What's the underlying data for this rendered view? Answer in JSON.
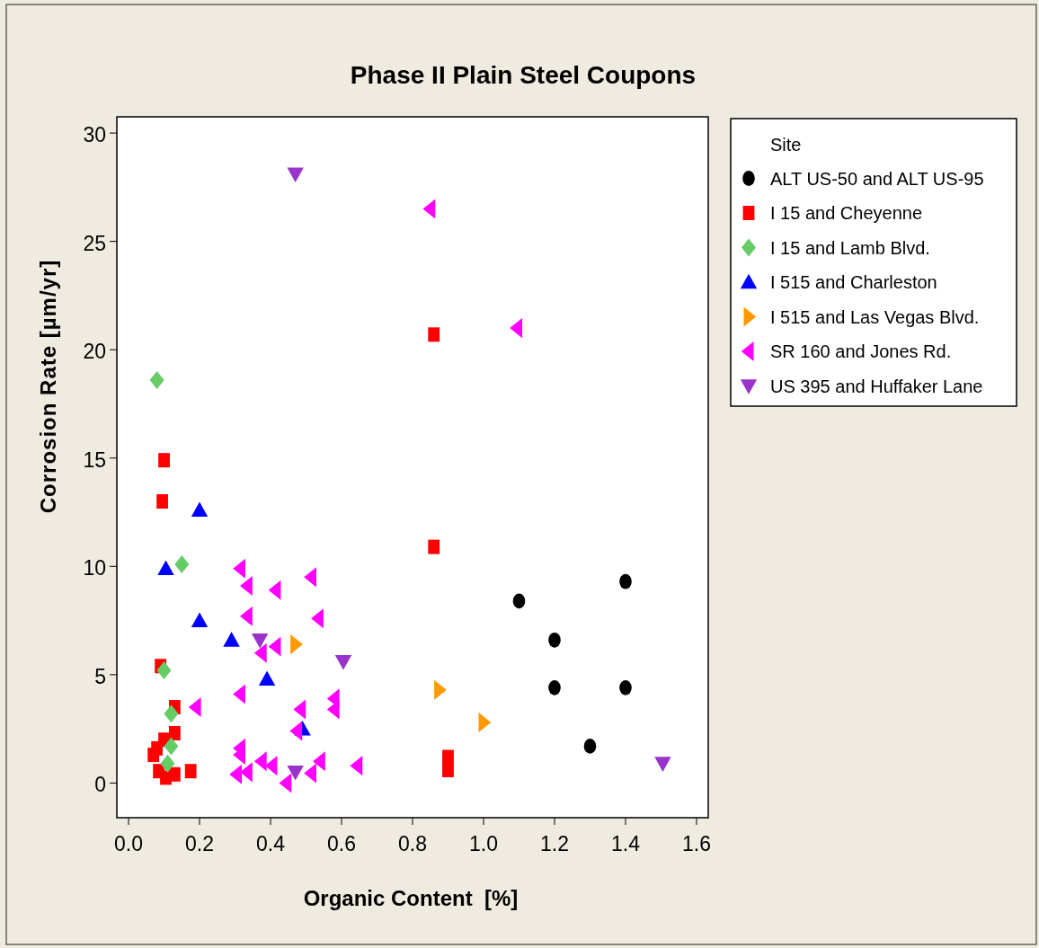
{
  "chart_data": {
    "type": "scatter",
    "title": "Phase II Plain Steel Coupons",
    "xlabel": "Organic Content  [%]",
    "ylabel": "Corrosion Rate [µm/yr]",
    "legend_title": "Site",
    "legend": "right",
    "grid": false,
    "xlim": [
      -0.033,
      1.633
    ],
    "ylim": [
      -1.6,
      30.75
    ],
    "xticks": [
      {
        "value": 0,
        "label": "0.0"
      },
      {
        "value": 0.2,
        "label": "0.2"
      },
      {
        "value": 0.4,
        "label": "0.4"
      },
      {
        "value": 0.6,
        "label": "0.6"
      },
      {
        "value": 0.8,
        "label": "0.8"
      },
      {
        "value": 1,
        "label": "1.0"
      },
      {
        "value": 1.2,
        "label": "1.2"
      },
      {
        "value": 1.4,
        "label": "1.4"
      },
      {
        "value": 1.6,
        "label": "1.6"
      }
    ],
    "yticks": [
      0,
      5,
      10,
      15,
      20,
      25,
      30
    ],
    "series": [
      {
        "name": "ALT US-50 and ALT US-95",
        "color": "#000000",
        "marker": "circle",
        "x": [
          1.1,
          1.2,
          1.2,
          1.3,
          1.4,
          1.4
        ],
        "values": [
          8.4,
          6.6,
          4.4,
          1.7,
          9.3,
          4.4
        ]
      },
      {
        "name": "I 15 and Cheyenne",
        "color": "#ff0000",
        "marker": "square",
        "x": [
          0.1,
          0.095,
          0.86,
          0.86,
          0.09,
          0.13,
          0.13,
          0.1,
          0.08,
          0.07,
          0.085,
          0.13,
          0.105,
          0.175,
          0.9,
          0.9
        ],
        "values": [
          14.9,
          13.0,
          20.7,
          10.9,
          5.4,
          3.5,
          2.3,
          2.0,
          1.6,
          1.3,
          0.55,
          0.4,
          0.25,
          0.55,
          1.2,
          0.6
        ]
      },
      {
        "name": "I 15 and Lamb Blvd.",
        "color": "#66cc66",
        "marker": "diamond",
        "x": [
          0.08,
          0.15,
          0.1,
          0.12,
          0.12,
          0.11
        ],
        "values": [
          18.6,
          10.1,
          5.2,
          3.2,
          1.7,
          0.9
        ]
      },
      {
        "name": "I 515 and Charleston",
        "color": "#0000ff",
        "marker": "triangle",
        "x": [
          0.2,
          0.105,
          0.2,
          0.29,
          0.39,
          0.49
        ],
        "values": [
          12.6,
          9.9,
          7.5,
          6.6,
          4.8,
          2.5
        ]
      },
      {
        "name": "I 515 and Las Vegas Blvd.",
        "color": "#ff9900",
        "marker": "triangle-right",
        "x": [
          0.47,
          0.875,
          1.0
        ],
        "values": [
          6.4,
          4.3,
          2.8
        ]
      },
      {
        "name": "SR 160 and Jones Rd.",
        "color": "#ff00ff",
        "marker": "triangle-left",
        "x": [
          0.85,
          1.095,
          0.315,
          0.335,
          0.415,
          0.515,
          0.335,
          0.535,
          0.415,
          0.375,
          0.315,
          0.19,
          0.58,
          0.58,
          0.485,
          0.475,
          0.315,
          0.315,
          0.305,
          0.335,
          0.375,
          0.405,
          0.445,
          0.515,
          0.54,
          0.645
        ],
        "values": [
          26.5,
          21.0,
          9.9,
          9.1,
          8.9,
          9.5,
          7.7,
          7.6,
          6.3,
          6.0,
          4.1,
          3.5,
          3.9,
          3.4,
          3.4,
          2.4,
          1.6,
          1.3,
          0.4,
          0.5,
          1.0,
          0.8,
          0.0,
          0.45,
          1.0,
          0.8
        ]
      },
      {
        "name": "US 395 and Huffaker Lane",
        "color": "#9933cc",
        "marker": "triangle-down",
        "x": [
          0.47,
          0.37,
          0.605,
          0.47,
          1.505
        ],
        "values": [
          28.1,
          6.6,
          5.6,
          0.5,
          0.9
        ]
      }
    ]
  }
}
